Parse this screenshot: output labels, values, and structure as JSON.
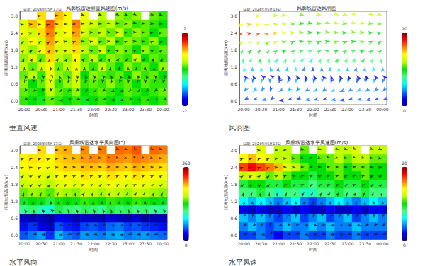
{
  "chart_data": [
    {
      "type": "heatmap",
      "title": "风廓线雷达垂直风速图(m/s)",
      "subtitle": "日期: 2024年05月13日",
      "caption": "垂直风速",
      "x_label": "时间",
      "y_label": "距离地面高度(km)",
      "categories": [
        "20:00",
        null,
        "20:30",
        null,
        "21:00",
        null,
        "21:30",
        null,
        "22:00",
        null,
        "22:30",
        null,
        "23:00",
        null,
        "23:30",
        null,
        "00:00"
      ],
      "y_categories": [
        "0.0",
        null,
        "0.6",
        null,
        "1.2",
        null,
        "1.8",
        null,
        "2.4",
        null,
        "3.0"
      ],
      "colorbar_range": [
        -2,
        2
      ],
      "values": [
        [
          0.1,
          0.0,
          -0.1,
          0.2,
          0.1,
          0.0,
          0.1,
          -0.1,
          0.0,
          0.1,
          0.0,
          -0.1,
          0.1,
          0.0,
          0.1,
          0.0,
          0.1
        ],
        [
          0.2,
          0.1,
          0.0,
          0.4,
          0.2,
          0.1,
          0.3,
          0.0,
          0.1,
          0.2,
          0.1,
          0.0,
          0.2,
          0.1,
          0.0,
          0.1,
          0.2
        ],
        [
          0.3,
          0.0,
          0.2,
          0.6,
          0.1,
          0.3,
          0.5,
          0.1,
          0.2,
          0.1,
          0.3,
          0.1,
          0.2,
          0.0,
          0.2,
          0.1,
          0.1
        ],
        [
          0.2,
          0.4,
          0.1,
          0.7,
          0.3,
          0.2,
          0.6,
          0.0,
          0.3,
          0.2,
          0.1,
          0.2,
          0.0,
          0.3,
          0.1,
          0.2,
          0.0
        ],
        [
          0.4,
          0.2,
          0.5,
          0.8,
          0.2,
          0.4,
          0.7,
          0.3,
          0.1,
          0.4,
          0.2,
          0.0,
          0.3,
          0.1,
          0.2,
          0.0,
          0.3
        ],
        [
          0.3,
          0.6,
          0.2,
          0.9,
          0.4,
          0.3,
          0.8,
          0.2,
          0.4,
          0.1,
          0.3,
          0.2,
          0.1,
          0.4,
          0.0,
          0.2,
          0.1
        ],
        [
          0.5,
          0.3,
          0.7,
          1.0,
          0.5,
          0.6,
          0.9,
          0.4,
          0.2,
          0.5,
          0.1,
          0.3,
          0.2,
          0.0,
          0.3,
          0.1,
          0.2
        ],
        [
          0.4,
          0.8,
          0.5,
          1.1,
          0.7,
          0.5,
          1.0,
          0.3,
          0.6,
          0.2,
          0.4,
          0.1,
          0.3,
          0.2,
          0.1,
          0.3,
          0.0
        ],
        [
          0.7,
          0.5,
          0.9,
          1.2,
          0.6,
          0.8,
          1.1,
          0.5,
          0.3,
          0.4,
          0.2,
          0.5,
          0.1,
          0.3,
          0.2,
          0.0,
          0.2
        ],
        [
          0.6,
          1.0,
          0.8,
          1.3,
          0.9,
          0.7,
          1.2,
          0.6,
          0.5,
          0.3,
          0.4,
          0.2,
          0.3,
          0.1,
          0.2,
          0.1,
          0.0
        ],
        [
          null,
          null,
          0.9,
          null,
          1.0,
          0.8,
          null,
          0.7,
          null,
          0.4,
          null,
          0.3,
          0.2,
          0.3,
          null,
          0.2,
          0.1
        ]
      ]
    },
    {
      "type": "barbs",
      "title": "风廓线雷达风羽图",
      "subtitle": "日期: 2024年05月13日",
      "caption": "风羽图",
      "x_label": "时间",
      "y_label": "距离地面高度(km)",
      "categories": [
        "20:00",
        null,
        "20:30",
        null,
        "21:00",
        null,
        "21:30",
        null,
        "22:00",
        null,
        "22:30",
        null,
        "23:00",
        null,
        "23:30",
        null,
        "00:00"
      ],
      "y_categories": [
        "0.0",
        null,
        "0.6",
        null,
        "1.2",
        null,
        "1.8",
        null,
        "2.4",
        null,
        "3.0"
      ],
      "colorbar_range": [
        0,
        20
      ],
      "directions": [
        [
          60,
          70,
          80,
          50,
          90,
          70,
          60,
          80,
          75,
          70,
          80,
          85,
          70,
          75,
          80,
          70,
          65
        ],
        [
          40,
          50,
          30,
          20,
          60,
          45,
          40,
          55,
          60,
          50,
          65,
          70,
          55,
          60,
          50,
          45,
          40
        ],
        [
          20,
          10,
          15,
          5,
          30,
          25,
          10,
          20,
          15,
          10,
          25,
          15,
          10,
          20,
          5,
          10,
          15
        ],
        [
          140,
          150,
          130,
          120,
          160,
          150,
          145,
          155,
          150,
          140,
          160,
          150,
          155,
          145,
          150,
          140,
          135
        ],
        [
          170,
          180,
          175,
          160,
          185,
          180,
          175,
          190,
          185,
          180,
          190,
          185,
          180,
          190,
          185,
          180,
          175
        ],
        [
          200,
          210,
          205,
          195,
          215,
          210,
          205,
          220,
          215,
          210,
          220,
          215,
          210,
          220,
          215,
          210,
          205
        ],
        [
          220,
          230,
          225,
          215,
          235,
          240,
          235,
          245,
          240,
          235,
          245,
          240,
          235,
          245,
          240,
          235,
          230
        ],
        [
          235,
          245,
          240,
          230,
          250,
          255,
          250,
          260,
          255,
          250,
          260,
          255,
          250,
          260,
          255,
          250,
          245
        ],
        [
          250,
          255,
          250,
          245,
          260,
          265,
          265,
          270,
          270,
          265,
          275,
          270,
          265,
          275,
          270,
          265,
          260
        ],
        [
          255,
          260,
          258,
          250,
          265,
          270,
          272,
          280,
          285,
          280,
          290,
          285,
          280,
          290,
          285,
          280,
          275
        ],
        [
          null,
          null,
          262,
          null,
          270,
          275,
          null,
          285,
          null,
          290,
          null,
          295,
          290,
          300,
          null,
          295,
          290
        ]
      ],
      "speeds": [
        [
          3,
          3,
          4,
          3,
          2,
          3,
          3,
          4,
          3,
          3,
          4,
          3,
          3,
          4,
          3,
          3,
          3
        ],
        [
          4,
          5,
          4,
          3,
          4,
          5,
          4,
          4,
          5,
          4,
          5,
          4,
          4,
          5,
          4,
          4,
          4
        ],
        [
          5,
          4,
          5,
          4,
          3,
          4,
          5,
          3,
          4,
          5,
          3,
          4,
          5,
          3,
          4,
          5,
          4
        ],
        [
          2,
          1,
          2,
          1,
          1,
          2,
          1,
          2,
          1,
          1,
          2,
          1,
          1,
          2,
          1,
          2,
          2
        ],
        [
          6,
          5,
          6,
          5,
          4,
          5,
          6,
          4,
          3,
          4,
          5,
          6,
          5,
          4,
          5,
          6,
          5
        ],
        [
          8,
          8,
          9,
          8,
          7,
          8,
          8,
          7,
          7,
          8,
          8,
          9,
          8,
          8,
          9,
          8,
          8
        ],
        [
          9,
          10,
          10,
          9,
          9,
          10,
          9,
          9,
          8,
          9,
          9,
          10,
          9,
          9,
          10,
          9,
          9
        ],
        [
          12,
          13,
          12,
          11,
          12,
          11,
          10,
          10,
          9,
          10,
          10,
          11,
          10,
          10,
          11,
          10,
          10
        ],
        [
          17,
          18,
          17,
          16,
          15,
          13,
          12,
          11,
          10,
          10,
          11,
          11,
          10,
          11,
          11,
          10,
          10
        ],
        [
          14,
          15,
          14,
          13,
          12,
          12,
          11,
          10,
          10,
          11,
          11,
          12,
          11,
          12,
          12,
          11,
          11
        ],
        [
          null,
          null,
          13,
          null,
          12,
          12,
          null,
          11,
          null,
          12,
          null,
          12,
          12,
          13,
          null,
          12,
          12
        ]
      ]
    },
    {
      "type": "heatmap",
      "title": "风廓线雷达水平风向图(°)",
      "subtitle": "日期: 2024年05月13日",
      "caption": "水平风向",
      "x_label": "时间",
      "y_label": "距离地面高度(km)",
      "categories": [
        "20:00",
        null,
        "20:30",
        null,
        "21:00",
        null,
        "21:30",
        null,
        "22:00",
        null,
        "22:30",
        null,
        "23:00",
        null,
        "23:30",
        null,
        "00:00"
      ],
      "y_categories": [
        "0.0",
        null,
        "0.6",
        null,
        "1.2",
        null,
        "1.8",
        null,
        "2.4",
        null,
        "3.0"
      ],
      "colorbar_range": [
        0,
        360
      ],
      "values": [
        [
          60,
          70,
          80,
          50,
          90,
          70,
          60,
          80,
          75,
          70,
          80,
          85,
          70,
          75,
          80,
          70,
          65
        ],
        [
          40,
          50,
          30,
          20,
          60,
          45,
          40,
          55,
          60,
          50,
          65,
          70,
          55,
          60,
          50,
          45,
          40
        ],
        [
          20,
          10,
          15,
          5,
          30,
          25,
          10,
          20,
          15,
          10,
          25,
          15,
          10,
          20,
          5,
          10,
          15
        ],
        [
          140,
          150,
          130,
          120,
          160,
          150,
          145,
          155,
          150,
          140,
          160,
          150,
          155,
          145,
          150,
          140,
          135
        ],
        [
          170,
          180,
          175,
          160,
          185,
          180,
          175,
          190,
          185,
          180,
          190,
          185,
          180,
          190,
          185,
          180,
          175
        ],
        [
          200,
          210,
          205,
          195,
          215,
          210,
          205,
          220,
          215,
          210,
          220,
          215,
          210,
          220,
          215,
          210,
          205
        ],
        [
          220,
          230,
          225,
          215,
          235,
          240,
          235,
          245,
          240,
          235,
          245,
          240,
          235,
          245,
          240,
          235,
          230
        ],
        [
          235,
          245,
          240,
          230,
          250,
          255,
          250,
          260,
          255,
          250,
          260,
          255,
          250,
          260,
          255,
          250,
          245
        ],
        [
          250,
          255,
          250,
          245,
          260,
          265,
          265,
          270,
          270,
          265,
          275,
          270,
          265,
          275,
          270,
          265,
          260
        ],
        [
          255,
          260,
          258,
          250,
          265,
          270,
          272,
          280,
          285,
          280,
          290,
          285,
          280,
          290,
          285,
          280,
          275
        ],
        [
          null,
          null,
          262,
          null,
          270,
          275,
          null,
          285,
          null,
          290,
          null,
          295,
          290,
          300,
          null,
          295,
          290
        ]
      ]
    },
    {
      "type": "heatmap",
      "title": "风廓线雷达水平风速图(m/s)",
      "subtitle": "日期: 2024年05月13日",
      "caption": "水平风速",
      "x_label": "时间",
      "y_label": "距离地面高度(km)",
      "categories": [
        "20:00",
        null,
        "20:30",
        null,
        "21:00",
        null,
        "21:30",
        null,
        "22:00",
        null,
        "22:30",
        null,
        "23:00",
        null,
        "23:30",
        null,
        "00:00"
      ],
      "y_categories": [
        "0.0",
        null,
        "0.6",
        null,
        "1.2",
        null,
        "1.8",
        null,
        "2.4",
        null,
        "3.0"
      ],
      "colorbar_range": [
        0,
        20
      ],
      "values": [
        [
          3,
          3,
          4,
          3,
          2,
          3,
          3,
          4,
          3,
          3,
          4,
          3,
          3,
          4,
          3,
          3,
          3
        ],
        [
          4,
          5,
          4,
          3,
          4,
          5,
          4,
          4,
          5,
          4,
          5,
          4,
          4,
          5,
          4,
          4,
          4
        ],
        [
          5,
          4,
          5,
          4,
          3,
          4,
          5,
          3,
          4,
          5,
          3,
          4,
          5,
          3,
          4,
          5,
          4
        ],
        [
          2,
          1,
          2,
          1,
          1,
          2,
          1,
          2,
          1,
          1,
          2,
          1,
          1,
          2,
          1,
          2,
          2
        ],
        [
          6,
          5,
          6,
          5,
          4,
          5,
          6,
          4,
          3,
          4,
          5,
          6,
          5,
          4,
          5,
          6,
          5
        ],
        [
          8,
          8,
          9,
          8,
          7,
          8,
          8,
          7,
          7,
          8,
          8,
          9,
          8,
          8,
          9,
          8,
          8
        ],
        [
          9,
          10,
          10,
          9,
          9,
          10,
          9,
          9,
          8,
          9,
          9,
          10,
          9,
          9,
          10,
          9,
          9
        ],
        [
          12,
          13,
          12,
          11,
          12,
          11,
          10,
          10,
          9,
          10,
          10,
          11,
          10,
          10,
          11,
          10,
          10
        ],
        [
          17,
          18,
          17,
          16,
          15,
          13,
          12,
          11,
          10,
          10,
          11,
          11,
          10,
          11,
          11,
          10,
          10
        ],
        [
          14,
          15,
          14,
          13,
          12,
          12,
          11,
          10,
          10,
          11,
          11,
          12,
          11,
          12,
          12,
          11,
          11
        ],
        [
          null,
          null,
          13,
          null,
          12,
          12,
          null,
          11,
          null,
          12,
          null,
          12,
          12,
          13,
          null,
          12,
          12
        ]
      ]
    }
  ]
}
